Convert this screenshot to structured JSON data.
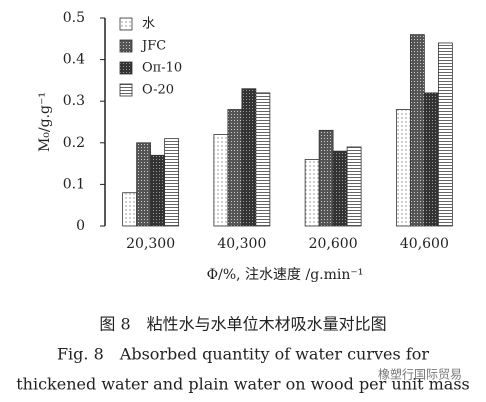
{
  "chart_data": {
    "type": "bar",
    "y_label": "M₀/g.g⁻¹",
    "x_label": "Φ/%, 注水速度 /g.min⁻¹",
    "categories": [
      "20,300",
      "40,300",
      "20,600",
      "40,600"
    ],
    "series": [
      {
        "name": "水",
        "color": "#888888",
        "values": [
          0.08,
          0.22,
          0.16,
          0.28
        ]
      },
      {
        "name": "JFC",
        "color": "#555555",
        "values": [
          0.2,
          0.28,
          0.23,
          0.46
        ]
      },
      {
        "name": "Oπ-10",
        "color": "#333333",
        "values": [
          0.17,
          0.33,
          0.18,
          0.32
        ]
      },
      {
        "name": "O-20",
        "color": "#666666",
        "values": [
          0.21,
          0.32,
          0.19,
          0.44
        ]
      }
    ],
    "ylim": [
      0,
      0.5
    ],
    "yticks": [
      0,
      0.1,
      0.2,
      0.3,
      0.4,
      0.5
    ],
    "legend": "top-left"
  },
  "caption": {
    "zh": "图 8　粘性水与水单位木材吸水量对比图",
    "en_line1": "Fig. 8　Absorbed quantity of water curves for",
    "en_line2": "thickened water and plain water on wood per unit mass",
    "watermark": "橡塑行国际贸易"
  }
}
